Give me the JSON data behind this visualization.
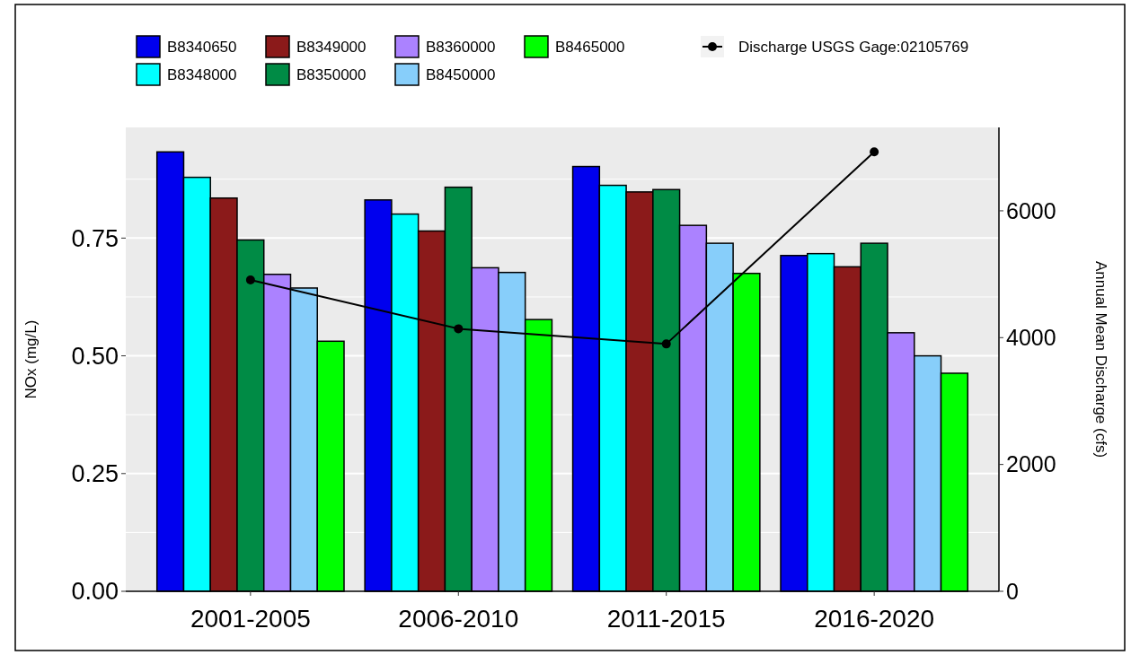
{
  "chart_data": {
    "type": "bar",
    "ylabel": "NOx (mg/L)",
    "y2label": "Annual Mean Discharge (cfs)",
    "categories": [
      "2001-2005",
      "2006-2010",
      "2011-2015",
      "2016-2020"
    ],
    "series": [
      {
        "name": "B8340650",
        "color": "#0000ee",
        "values": [
          0.933,
          0.831,
          0.902,
          0.713
        ]
      },
      {
        "name": "B8348000",
        "color": "#00ffff",
        "values": [
          0.879,
          0.801,
          0.862,
          0.717
        ]
      },
      {
        "name": "B8349000",
        "color": "#8b1a1a",
        "values": [
          0.835,
          0.765,
          0.848,
          0.689
        ]
      },
      {
        "name": "B8350000",
        "color": "#008b45",
        "values": [
          0.746,
          0.858,
          0.853,
          0.739
        ]
      },
      {
        "name": "B8360000",
        "color": "#ab82ff",
        "values": [
          0.673,
          0.687,
          0.777,
          0.549
        ]
      },
      {
        "name": "B8450000",
        "color": "#87cefa",
        "values": [
          0.644,
          0.677,
          0.739,
          0.5
        ]
      },
      {
        "name": "B8465000",
        "color": "#00ff00",
        "values": [
          0.531,
          0.577,
          0.675,
          0.463
        ]
      },
      {
        "name": "Discharge USGS Gage:02105769",
        "type": "line",
        "axis": "y2",
        "color": "#000000",
        "marker": "circle",
        "values": [
          4910,
          4140,
          3900,
          6930
        ]
      }
    ],
    "ylim": [
      0,
      0.985
    ],
    "yticks": [
      {
        "value": 0,
        "label": "0.00"
      },
      0.25,
      {
        "value": 0.5,
        "label": "0.50"
      },
      0.75
    ],
    "y2lim": [
      0,
      7315
    ],
    "y2ticks": [
      0,
      2000,
      4000,
      6000
    ],
    "grid": true,
    "legend": "top"
  }
}
